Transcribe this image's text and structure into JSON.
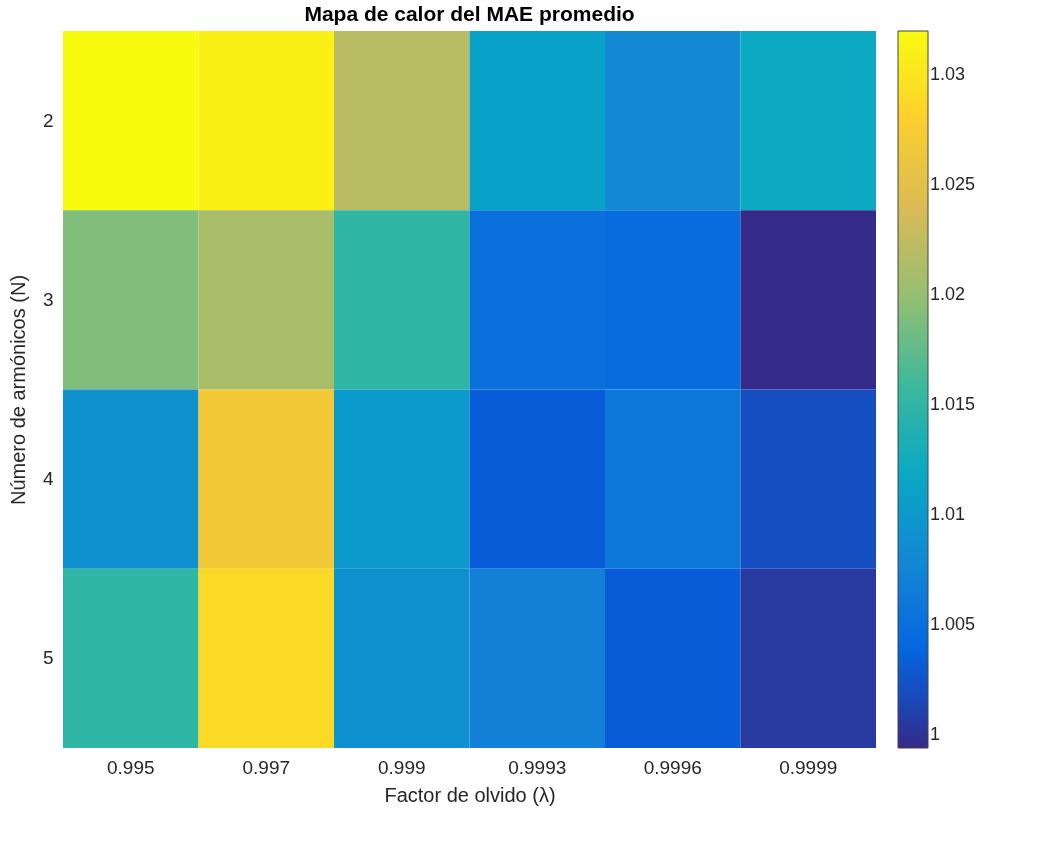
{
  "chart_data": {
    "type": "heatmap",
    "title": "Mapa de calor del MAE promedio",
    "xlabel": "Factor de olvido (λ)",
    "ylabel": "Número de armónicos (N)",
    "categories": [
      "0.995",
      "0.997",
      "0.999",
      "0.9993",
      "0.9996",
      "0.9999"
    ],
    "y_categories": [
      "2",
      "3",
      "4",
      "5"
    ],
    "cells": [
      [
        1.032,
        1.031,
        1.022,
        1.011,
        1.008,
        1.012
      ],
      [
        1.019,
        1.021,
        1.015,
        1.005,
        1.0045,
        0.9995
      ],
      [
        1.009,
        1.027,
        1.01,
        1.003,
        1.006,
        1.002
      ],
      [
        1.015,
        1.029,
        1.009,
        1.007,
        1.003,
        1.0005
      ]
    ],
    "clim": [
      0.9994,
      1.032
    ],
    "cticks": [
      1,
      1.005,
      1.01,
      1.015,
      1.02,
      1.025,
      1.03
    ]
  }
}
